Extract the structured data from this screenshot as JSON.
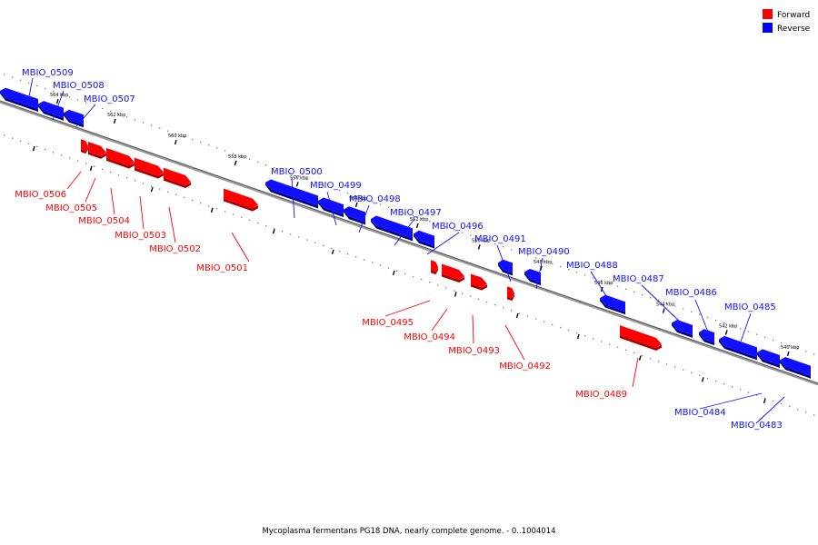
{
  "legend": [
    {
      "label": "Forward",
      "color": "#ff0000"
    },
    {
      "label": "Reverse",
      "color": "#0000ff"
    }
  ],
  "colors": {
    "forward": "#ff0000",
    "forward_dark": "#a80000",
    "reverse": "#1010ff",
    "reverse_dark": "#00008c",
    "backbone": "#777777"
  },
  "caption": "Mycoplasma fermentans PG18 DNA, nearly complete genome. - 0..1004014",
  "ticks": [
    "564 kbp",
    "562 kbp",
    "560 kbp",
    "558 kbp",
    "556 kbp",
    "554 kbp",
    "552 kbp",
    "550 kbp",
    "548 kbp",
    "546 kbp",
    "544 kbp",
    "542 kbp",
    "540 kbp"
  ],
  "genes": [
    {
      "name": "MBIO_0509",
      "strand": "reverse"
    },
    {
      "name": "MBIO_0508",
      "strand": "reverse"
    },
    {
      "name": "MBIO_0507",
      "strand": "reverse"
    },
    {
      "name": "MBIO_0506",
      "strand": "forward"
    },
    {
      "name": "MBIO_0505",
      "strand": "forward"
    },
    {
      "name": "MBIO_0504",
      "strand": "forward"
    },
    {
      "name": "MBIO_0503",
      "strand": "forward"
    },
    {
      "name": "MBIO_0502",
      "strand": "forward"
    },
    {
      "name": "MBIO_0501",
      "strand": "forward"
    },
    {
      "name": "MBIO_0500",
      "strand": "reverse"
    },
    {
      "name": "MBIO_0499",
      "strand": "reverse"
    },
    {
      "name": "MBIO_0498",
      "strand": "reverse"
    },
    {
      "name": "MBIO_0497",
      "strand": "reverse"
    },
    {
      "name": "MBIO_0496",
      "strand": "reverse"
    },
    {
      "name": "MBIO_0495",
      "strand": "forward"
    },
    {
      "name": "MBIO_0494",
      "strand": "forward"
    },
    {
      "name": "MBIO_0493",
      "strand": "forward"
    },
    {
      "name": "MBIO_0492",
      "strand": "forward"
    },
    {
      "name": "MBIO_0491",
      "strand": "reverse"
    },
    {
      "name": "MBIO_0490",
      "strand": "reverse"
    },
    {
      "name": "MBIO_0489",
      "strand": "forward"
    },
    {
      "name": "MBIO_0488",
      "strand": "reverse"
    },
    {
      "name": "MBIO_0487",
      "strand": "reverse"
    },
    {
      "name": "MBIO_0486",
      "strand": "reverse"
    },
    {
      "name": "MBIO_0485",
      "strand": "reverse"
    },
    {
      "name": "MBIO_0484",
      "strand": "reverse"
    },
    {
      "name": "MBIO_0483",
      "strand": "reverse"
    }
  ]
}
